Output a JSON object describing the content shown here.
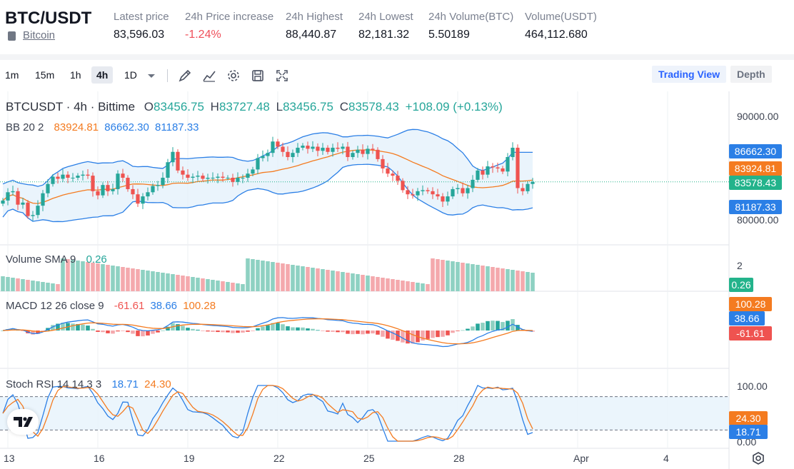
{
  "header": {
    "pair": "BTC/USDT",
    "coin_name": "Bitcoin",
    "stats": [
      {
        "label": "Latest price",
        "value": "83,596.03",
        "neg": false
      },
      {
        "label": "24h Price increase",
        "value": "-1.24%",
        "neg": true
      },
      {
        "label": "24h Highest",
        "value": "88,440.87",
        "neg": false
      },
      {
        "label": "24h Lowest",
        "value": "82,181.32",
        "neg": false
      },
      {
        "label": "24h Volume(BTC)",
        "value": "5.50189",
        "neg": false
      },
      {
        "label": "Volume(USDT)",
        "value": "464,112.680",
        "neg": false
      }
    ]
  },
  "toolbar": {
    "timeframes": [
      "1m",
      "15m",
      "1h",
      "4h",
      "1D"
    ],
    "active_timeframe": "4h",
    "tools": [
      "brush-icon",
      "line-chart-icon",
      "gear-icon",
      "save-icon",
      "fullscreen-icon"
    ],
    "trading_view_label": "Trading View",
    "depth_label": "Depth"
  },
  "main_legend": {
    "symbol": "BTCUSDT · 4h · Bittime",
    "o_label": "O",
    "o": "83456.75",
    "h_label": "H",
    "h": "83727.48",
    "l_label": "L",
    "l": "83456.75",
    "c_label": "C",
    "c": "83578.43",
    "change": "+108.09 (+0.13%)",
    "bb_label": "BB 20 2",
    "bb_basis": "83924.81",
    "bb_upper": "86662.30",
    "bb_lower": "81187.33"
  },
  "price_axis": {
    "ticks": [
      {
        "label": "90000.00",
        "value": 90000
      },
      {
        "label": "80000.00",
        "value": 80000
      }
    ],
    "range": [
      77500,
      92500
    ],
    "badges": [
      {
        "label": "86662.30",
        "value": 86662.3,
        "color": "#2b7fe6"
      },
      {
        "label": "83924.81",
        "value": 83924.81,
        "color": "#f47b20"
      },
      {
        "label": "83578.43",
        "value": 83578.43,
        "color": "#23b38b"
      },
      {
        "label": "81187.33",
        "value": 81187.33,
        "color": "#2b7fe6"
      }
    ]
  },
  "volume_legend": {
    "label": "Volume SMA 9",
    "value": "0.26"
  },
  "volume_axis": {
    "tick": "2",
    "badge": "0.26"
  },
  "macd_legend": {
    "label": "MACD 12 26 close 9",
    "hist": "-61.61",
    "macd": "38.66",
    "signal": "100.28"
  },
  "macd_axis": {
    "badges": [
      {
        "label": "100.28",
        "color": "#f47b20"
      },
      {
        "label": "38.66",
        "color": "#2b7fe6"
      },
      {
        "label": "-61.61",
        "color": "#ef5350"
      }
    ]
  },
  "stoch_legend": {
    "label": "Stoch RSI 14 14 3 3",
    "k": "18.71",
    "d": "24.30"
  },
  "stoch_axis": {
    "ticks": [
      "100.00",
      "0.00"
    ],
    "badges": [
      {
        "label": "24.30",
        "color": "#f47b20"
      },
      {
        "label": "18.71",
        "color": "#2b7fe6"
      }
    ]
  },
  "time_axis": [
    {
      "label": "13",
      "index": 1
    },
    {
      "label": "16",
      "index": 19
    },
    {
      "label": "19",
      "index": 37
    },
    {
      "label": "22",
      "index": 55
    },
    {
      "label": "25",
      "index": 73
    },
    {
      "label": "28",
      "index": 91
    },
    {
      "label": "Apr",
      "index": 115
    },
    {
      "label": "4",
      "index": 133
    }
  ],
  "colors": {
    "up": "#26a69a",
    "down": "#ef5350",
    "bb_band": "#2b7fe6",
    "bb_basis": "#f47b20",
    "vol_up": "#8ed1c2",
    "vol_down": "#f4a9ad",
    "grid": "#eef0f3"
  },
  "chart_data": {
    "type": "candlestick",
    "closes": [
      81800,
      82600,
      82700,
      81400,
      81600,
      80300,
      80400,
      81300,
      82500,
      83400,
      84100,
      83900,
      84300,
      84000,
      84000,
      84200,
      84300,
      84200,
      82700,
      82300,
      83300,
      82700,
      82900,
      84400,
      84000,
      82900,
      82400,
      81500,
      82200,
      82600,
      83200,
      83300,
      84000,
      85500,
      86500,
      84700,
      84300,
      84000,
      84100,
      84200,
      83900,
      84000,
      84000,
      84100,
      84000,
      84000,
      83600,
      84000,
      84000,
      84400,
      84800,
      85900,
      86100,
      86400,
      87500,
      87000,
      86500,
      86000,
      86400,
      86900,
      87100,
      86800,
      87000,
      86600,
      86900,
      86500,
      86900,
      86800,
      87000,
      86000,
      86400,
      86700,
      86300,
      86800,
      86700,
      85800,
      84900,
      84400,
      84200,
      83700,
      82800,
      82400,
      82300,
      82700,
      82800,
      82700,
      82400,
      82200,
      81700,
      82200,
      82900,
      83000,
      82500,
      83000,
      83800,
      84700,
      84300,
      85100,
      85000,
      84900,
      84600,
      86000,
      86900,
      83000,
      82700,
      83400,
      83600
    ],
    "volume_sma_last": 0.26,
    "macd_last": {
      "hist": -61.61,
      "macd": 38.66,
      "signal": 100.28
    },
    "stoch_rsi_last": {
      "k": 18.71,
      "d": 24.3
    },
    "stoch_levels": [
      80,
      20
    ]
  }
}
